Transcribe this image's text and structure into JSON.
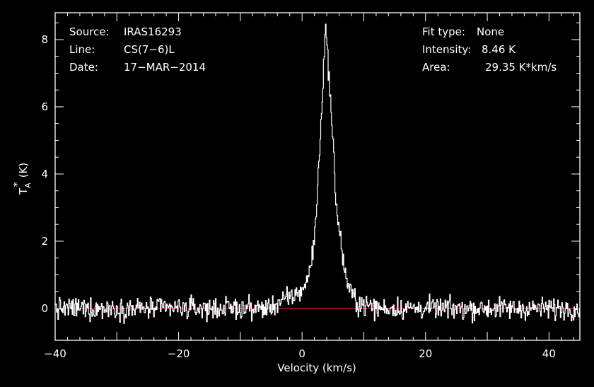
{
  "header": {
    "source_label": "Source:",
    "source_value": "IRAS16293",
    "line_label": "Line:",
    "line_value": "CS(7−6)L",
    "date_label": "Date:",
    "date_value": "17−MAR−2014",
    "fit_label": "Fit type:",
    "fit_value": "None",
    "intensity_label": "Intensity:",
    "intensity_value": "8.46 K",
    "area_label": "Area:",
    "area_value": "29.35 K*km/s"
  },
  "axes": {
    "xlabel": "Velocity (km/s)",
    "ylabel_main": "T",
    "ylabel_sub": "A",
    "ylabel_sup": "*",
    "ylabel_unit": "(K)"
  },
  "colors": {
    "background": "#000000",
    "trace": "#ffffff",
    "baseline": "#d81e1e",
    "frame": "#ffffff"
  },
  "chart_data": {
    "type": "line",
    "step": true,
    "xlim": [
      -40,
      45
    ],
    "ylim": [
      -0.95,
      8.8
    ],
    "xticks": [
      -40,
      -20,
      0,
      20,
      40
    ],
    "yticks": [
      0,
      2,
      4,
      6,
      8
    ],
    "xtick_labels": [
      "−40",
      "−20",
      "0",
      "20",
      "40"
    ],
    "ytick_labels": [
      "0",
      "2",
      "4",
      "6",
      "8"
    ],
    "baseline": 0,
    "channel_width": 0.11,
    "noise_rms": 0.16,
    "peak_velocity": 3.8,
    "peak_intensity": 8.46,
    "integrated_area": 29.35,
    "profile_points": [
      {
        "x": -5,
        "y": 0.08
      },
      {
        "x": -2,
        "y": 0.3
      },
      {
        "x": 0,
        "y": 0.55
      },
      {
        "x": 1,
        "y": 0.9
      },
      {
        "x": 2,
        "y": 2.0
      },
      {
        "x": 3,
        "y": 5.2
      },
      {
        "x": 3.8,
        "y": 8.46
      },
      {
        "x": 4.5,
        "y": 6.6
      },
      {
        "x": 5.5,
        "y": 3.2
      },
      {
        "x": 6.5,
        "y": 1.6
      },
      {
        "x": 7.5,
        "y": 0.6
      },
      {
        "x": 9,
        "y": 0.15
      },
      {
        "x": 12,
        "y": 0.02
      }
    ]
  }
}
